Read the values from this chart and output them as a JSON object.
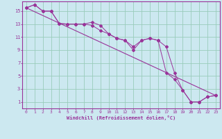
{
  "xlabel": "Windchill (Refroidissement éolien,°C)",
  "background_color": "#cce8f0",
  "line_color": "#993399",
  "grid_color": "#99ccbb",
  "xlim": [
    -0.5,
    23.5
  ],
  "ylim": [
    0,
    16.5
  ],
  "xticks": [
    0,
    1,
    2,
    3,
    4,
    5,
    6,
    7,
    8,
    9,
    10,
    11,
    12,
    13,
    14,
    15,
    16,
    17,
    18,
    19,
    20,
    21,
    22,
    23
  ],
  "yticks": [
    1,
    3,
    5,
    7,
    9,
    11,
    13,
    15
  ],
  "series1_x": [
    0,
    1,
    2,
    3,
    4,
    5,
    6,
    7,
    8,
    9,
    10,
    11,
    12,
    13,
    14,
    15,
    16,
    17,
    18,
    19,
    20,
    21,
    22,
    23
  ],
  "series1_y": [
    15.5,
    16.0,
    15.0,
    15.0,
    13.1,
    13.0,
    13.0,
    13.0,
    13.3,
    12.8,
    11.5,
    10.8,
    10.5,
    9.0,
    10.5,
    10.8,
    10.5,
    9.5,
    5.5,
    2.8,
    1.0,
    1.0,
    1.8,
    2.0
  ],
  "series2_x": [
    0,
    1,
    2,
    3,
    4,
    5,
    6,
    7,
    8,
    9,
    10,
    11,
    12,
    13,
    14,
    15,
    16,
    17,
    18,
    19,
    20,
    21,
    22,
    23
  ],
  "series2_y": [
    15.5,
    16.0,
    15.0,
    15.0,
    13.1,
    13.0,
    13.0,
    13.0,
    12.8,
    12.0,
    11.5,
    10.8,
    10.5,
    9.5,
    10.5,
    10.8,
    10.5,
    5.5,
    4.5,
    2.8,
    1.0,
    1.0,
    1.8,
    2.0
  ],
  "trend_x": [
    0,
    23
  ],
  "trend_y": [
    15.5,
    2.0
  ]
}
